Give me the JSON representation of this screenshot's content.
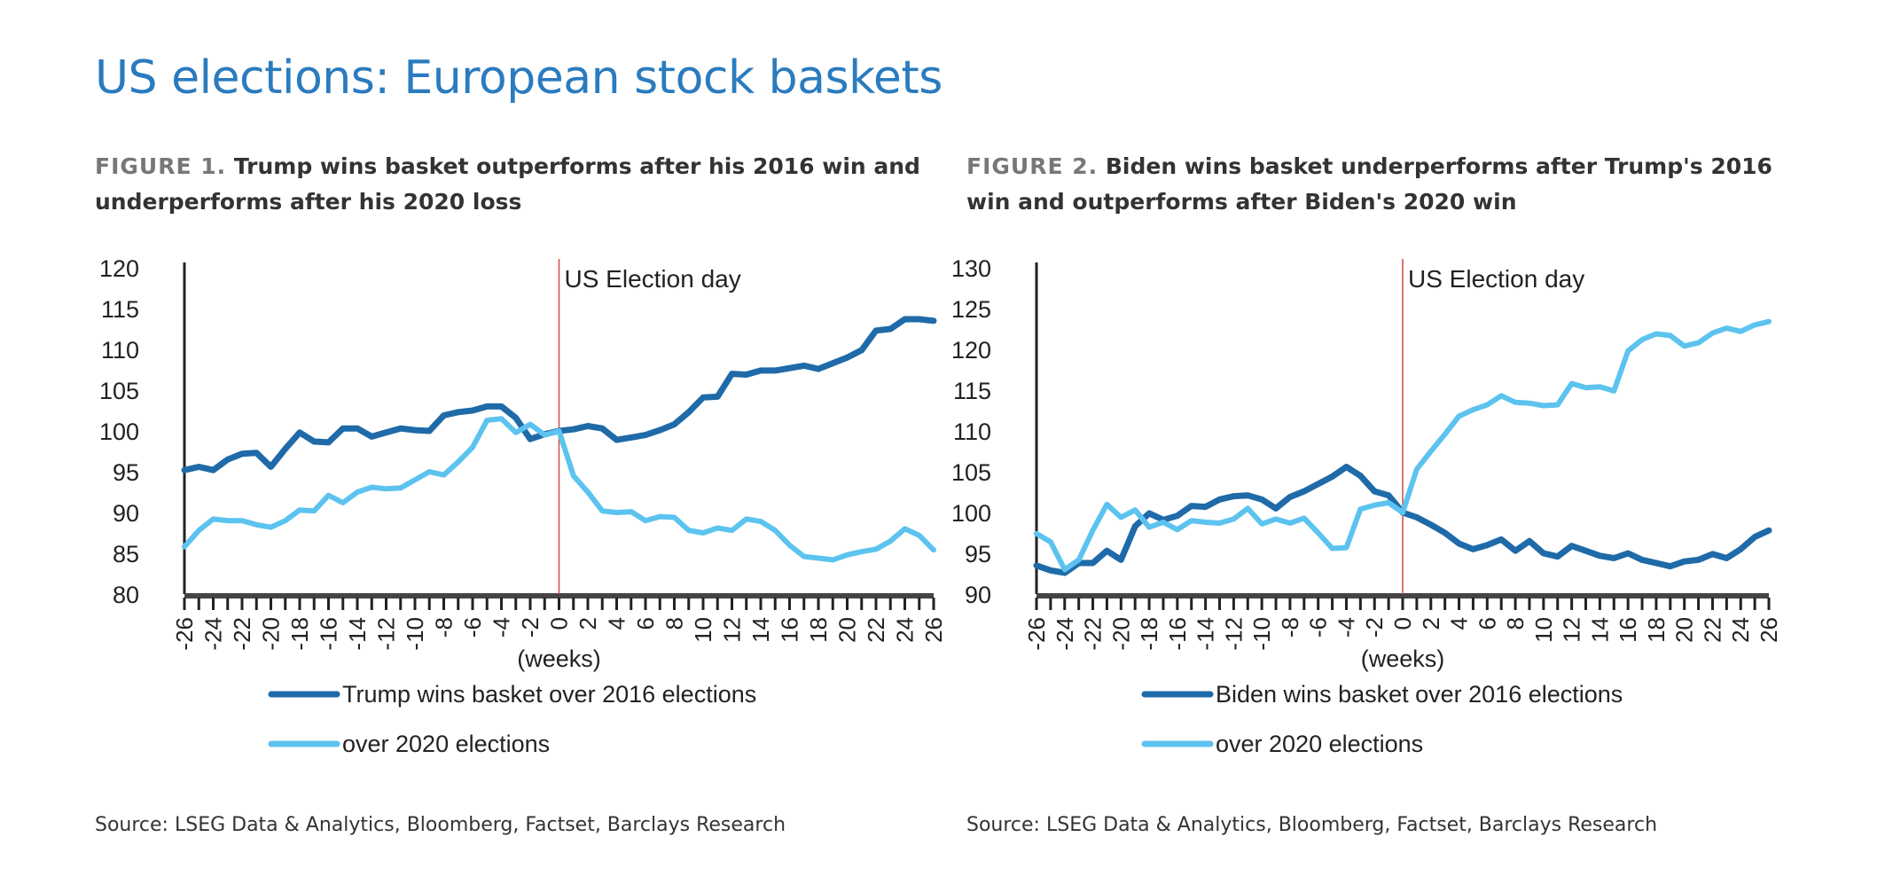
{
  "page_title": "US elections: European stock baskets",
  "colors": {
    "dark_series": "#1f6aa8",
    "light_series": "#5cc3ef",
    "election_line": "#d9534f",
    "title": "#2a7bbf"
  },
  "chart_data": [
    {
      "type": "line",
      "figure_label": "FIGURE 1.",
      "title": "Trump wins basket outperforms after his 2016 win and underperforms after his 2020 loss",
      "xlabel": "(weeks)",
      "ylabel": "",
      "xlim": [
        -26,
        26
      ],
      "ylim": [
        80,
        120
      ],
      "yticks": [
        80,
        85,
        90,
        95,
        100,
        105,
        110,
        115,
        120
      ],
      "xticks": [
        -26,
        -24,
        -22,
        -20,
        -18,
        -16,
        -14,
        -12,
        -10,
        -8,
        -6,
        -4,
        -2,
        0,
        2,
        4,
        6,
        8,
        10,
        12,
        14,
        16,
        18,
        20,
        22,
        24,
        26
      ],
      "annotation": "US Election day",
      "annotation_x": 0,
      "legend_position": "bottom",
      "grid": false,
      "x": [
        -26,
        -25,
        -24,
        -23,
        -22,
        -21,
        -20,
        -19,
        -18,
        -17,
        -16,
        -15,
        -14,
        -13,
        -12,
        -11,
        -10,
        -9,
        -8,
        -7,
        -6,
        -5,
        -4,
        -3,
        -2,
        -1,
        0,
        1,
        2,
        3,
        4,
        5,
        6,
        7,
        8,
        9,
        10,
        11,
        12,
        13,
        14,
        15,
        16,
        17,
        18,
        19,
        20,
        21,
        22,
        23,
        24,
        25,
        26
      ],
      "series": [
        {
          "name": "Trump wins basket over 2016 elections",
          "color": "#1f6aa8",
          "values": [
            95.2,
            95.6,
            95.2,
            96.5,
            97.2,
            97.3,
            95.6,
            97.8,
            99.8,
            98.7,
            98.6,
            100.3,
            100.3,
            99.3,
            99.8,
            100.3,
            100.1,
            100.0,
            101.9,
            102.3,
            102.5,
            103.0,
            103.0,
            101.6,
            99.0,
            99.6,
            100.0,
            100.2,
            100.6,
            100.3,
            98.9,
            99.2,
            99.5,
            100.1,
            100.8,
            102.3,
            104.1,
            104.2,
            107.0,
            106.9,
            107.4,
            107.4,
            107.7,
            108.0,
            107.6,
            108.3,
            109.0,
            109.9,
            112.3,
            112.5,
            113.7,
            113.7,
            113.5
          ]
        },
        {
          "name": "over 2020 elections",
          "color": "#5cc3ef",
          "values": [
            85.8,
            87.8,
            89.2,
            89.0,
            89.0,
            88.5,
            88.2,
            89.0,
            90.3,
            90.2,
            92.1,
            91.2,
            92.5,
            93.1,
            92.9,
            93.0,
            94.0,
            95.0,
            94.6,
            96.2,
            98.0,
            101.3,
            101.5,
            99.8,
            100.8,
            99.5,
            100.0,
            94.5,
            92.5,
            90.2,
            90.0,
            90.1,
            89.0,
            89.5,
            89.4,
            87.8,
            87.5,
            88.1,
            87.8,
            89.2,
            88.9,
            87.8,
            86.0,
            84.6,
            84.4,
            84.2,
            84.8,
            85.2,
            85.5,
            86.5,
            88.0,
            87.2,
            85.4
          ]
        }
      ],
      "source": "Source: LSEG Data & Analytics, Bloomberg, Factset, Barclays Research"
    },
    {
      "type": "line",
      "figure_label": "FIGURE 2.",
      "title": "Biden wins basket underperforms after Trump's 2016 win and outperforms after Biden's 2020 win",
      "xlabel": "(weeks)",
      "ylabel": "",
      "xlim": [
        -26,
        26
      ],
      "ylim": [
        90,
        130
      ],
      "yticks": [
        90,
        95,
        100,
        105,
        110,
        115,
        120,
        125,
        130
      ],
      "xticks": [
        -26,
        -24,
        -22,
        -20,
        -18,
        -16,
        -14,
        -12,
        -10,
        -8,
        -6,
        -4,
        -2,
        0,
        2,
        4,
        6,
        8,
        10,
        12,
        14,
        16,
        18,
        20,
        22,
        24,
        26
      ],
      "annotation": "US Election day",
      "annotation_x": 0,
      "legend_position": "bottom",
      "grid": false,
      "x": [
        -26,
        -25,
        -24,
        -23,
        -22,
        -21,
        -20,
        -19,
        -18,
        -17,
        -16,
        -15,
        -14,
        -13,
        -12,
        -11,
        -10,
        -9,
        -8,
        -7,
        -6,
        -5,
        -4,
        -3,
        -2,
        -1,
        0,
        1,
        2,
        3,
        4,
        5,
        6,
        7,
        8,
        9,
        10,
        11,
        12,
        13,
        14,
        15,
        16,
        17,
        18,
        19,
        20,
        21,
        22,
        23,
        24,
        25,
        26
      ],
      "series": [
        {
          "name": "Biden wins basket over 2016 elections",
          "color": "#1f6aa8",
          "values": [
            93.5,
            92.9,
            92.6,
            93.8,
            93.8,
            95.3,
            94.2,
            98.3,
            99.9,
            99.1,
            99.6,
            100.8,
            100.7,
            101.6,
            102.0,
            102.1,
            101.6,
            100.5,
            101.9,
            102.6,
            103.5,
            104.4,
            105.6,
            104.5,
            102.6,
            102.1,
            100.0,
            99.4,
            98.5,
            97.5,
            96.2,
            95.5,
            96.0,
            96.7,
            95.3,
            96.5,
            95.0,
            94.6,
            95.9,
            95.3,
            94.7,
            94.4,
            95.0,
            94.2,
            93.8,
            93.4,
            94.0,
            94.2,
            94.9,
            94.4,
            95.5,
            97.0,
            97.8
          ]
        },
        {
          "name": "over 2020 elections",
          "color": "#5cc3ef",
          "values": [
            97.4,
            96.4,
            93.0,
            94.2,
            97.8,
            101.0,
            99.4,
            100.3,
            98.2,
            98.8,
            97.9,
            99.0,
            98.8,
            98.7,
            99.2,
            100.5,
            98.6,
            99.2,
            98.7,
            99.3,
            97.5,
            95.6,
            95.7,
            100.4,
            100.9,
            101.2,
            100.0,
            105.3,
            107.5,
            109.6,
            111.8,
            112.6,
            113.2,
            114.3,
            113.5,
            113.4,
            113.1,
            113.2,
            115.8,
            115.3,
            115.4,
            114.9,
            119.8,
            121.2,
            121.9,
            121.7,
            120.4,
            120.8,
            122.0,
            122.6,
            122.2,
            123.0,
            123.4
          ]
        }
      ],
      "source": "Source: LSEG Data & Analytics, Bloomberg, Factset, Barclays Research"
    }
  ]
}
